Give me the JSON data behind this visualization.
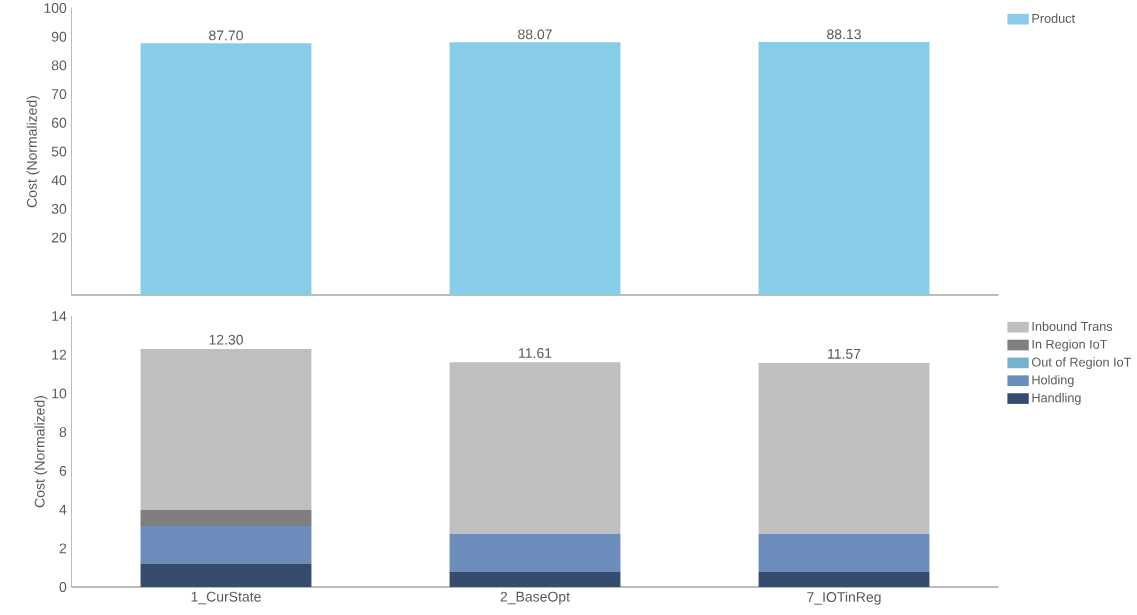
{
  "chart_data": [
    {
      "type": "bar",
      "ylabel": "Cost (Normalized)",
      "categories": [
        null,
        null,
        null
      ],
      "series": [
        {
          "name": "Product",
          "color": "#87cde9",
          "values": [
            87.7,
            88.07,
            88.13
          ],
          "value_labels": [
            "87.70",
            "88.07",
            "88.13"
          ]
        }
      ],
      "ylim": [
        0,
        100
      ],
      "yticks": [
        20,
        30,
        40,
        50,
        60,
        70,
        80,
        90,
        100
      ],
      "tick_labels": "y",
      "legend": "right"
    },
    {
      "type": "bar",
      "stacked": true,
      "ylabel": "Cost (Normalized)",
      "categories": [
        "1_CurState",
        "2_BaseOpt",
        "7_IOTinReg"
      ],
      "series": [
        {
          "name": "Handling",
          "color": "#364c6e",
          "values": [
            1.22,
            0.78,
            0.78
          ]
        },
        {
          "name": "Holding",
          "color": "#6c8dbb",
          "values": [
            1.93,
            1.96,
            1.96
          ]
        },
        {
          "name": "Out of Region IoT",
          "color": "#75b2d0",
          "values": [
            0,
            0,
            0
          ]
        },
        {
          "name": "In Region IoT",
          "color": "#7f7f7f",
          "values": [
            0.83,
            0,
            0
          ]
        },
        {
          "name": "Inbound Trans",
          "color": "#bfbfbf",
          "values": [
            8.32,
            8.87,
            8.83
          ]
        }
      ],
      "totals": [
        "12.30",
        "11.61",
        "11.57"
      ],
      "ylim": [
        0,
        14
      ],
      "yticks": [
        0,
        2,
        4,
        6,
        8,
        10,
        12,
        14
      ],
      "legend": "right"
    }
  ]
}
